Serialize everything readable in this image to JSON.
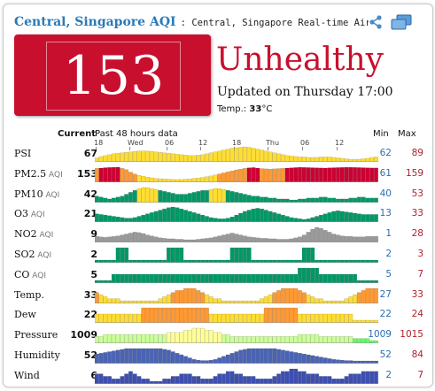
{
  "header": {
    "city": "Central, Singapore AQI",
    "subtitle": ": Central, Singapore Real-time Air Quality"
  },
  "icons": {
    "share": "share-icon",
    "windows": "windows-icon"
  },
  "summary": {
    "aqi": "153",
    "level": "Unhealthy",
    "updated": "Updated on Thursday 17:00",
    "temp_label": "Temp.:",
    "temp_value": "33",
    "temp_unit": "°C"
  },
  "columns": {
    "current": "Current",
    "history": "Past 48 hours data",
    "min": "Min",
    "max": "Max"
  },
  "ticks": [
    "18",
    "Wed",
    "06",
    "12",
    "18",
    "Thu",
    "06",
    "12"
  ],
  "colors": {
    "good": "#009966",
    "moderate": "#ffde33",
    "sensitive": "#ff9933",
    "unhealthy": "#cc0033",
    "gray": "#9a9a9a",
    "temp_low": "#ffde33",
    "temp_high": "#ff9933",
    "pressure_low": "#66ff66",
    "pressure_mid": "#ccff99",
    "pressure_high": "#ffff99",
    "humidity": "#4a64b5",
    "wind": "#3d4fb0"
  },
  "rows": [
    {
      "key": "psi",
      "label": "PSI",
      "aqi": "",
      "current": "67",
      "min": "62",
      "max": "89",
      "scheme": "moderate",
      "values": [
        65,
        68,
        70,
        72,
        74,
        75,
        76,
        77,
        78,
        79,
        80,
        80,
        80,
        79,
        78,
        77,
        76,
        75,
        74,
        73,
        72,
        71,
        70,
        70,
        71,
        72,
        74,
        76,
        78,
        80,
        82,
        84,
        86,
        87,
        88,
        89,
        88,
        86,
        84,
        82,
        80,
        78,
        76,
        74,
        72,
        70,
        69,
        68,
        67,
        67,
        66,
        66,
        66,
        67,
        67,
        67,
        66,
        65,
        64,
        63,
        62,
        62,
        62,
        63,
        64,
        66,
        67
      ]
    },
    {
      "key": "pm25",
      "label": "PM2.5",
      "aqi": "AQI",
      "current": "153",
      "min": "61",
      "max": "159",
      "values": [
        150,
        152,
        155,
        157,
        158,
        159,
        150,
        140,
        120,
        105,
        95,
        88,
        80,
        75,
        70,
        68,
        66,
        64,
        62,
        61,
        62,
        64,
        66,
        70,
        74,
        78,
        84,
        90,
        98,
        106,
        114,
        122,
        130,
        138,
        144,
        150,
        154,
        156,
        152,
        148,
        146,
        144,
        146,
        148,
        150,
        152,
        154,
        156,
        158,
        157,
        156,
        155,
        154,
        153,
        152,
        154,
        155,
        156,
        157,
        158,
        158,
        157,
        156,
        155,
        154,
        153,
        153
      ]
    },
    {
      "key": "pm10",
      "label": "PM10",
      "aqi": "AQI",
      "current": "42",
      "min": "40",
      "max": "53",
      "values": [
        44,
        43,
        42,
        41,
        42,
        43,
        44,
        46,
        48,
        50,
        52,
        53,
        53,
        52,
        51,
        50,
        49,
        48,
        47,
        46,
        46,
        46,
        47,
        48,
        49,
        50,
        50,
        51,
        52,
        52,
        51,
        50,
        49,
        48,
        47,
        46,
        45,
        44,
        44,
        43,
        43,
        42,
        42,
        41,
        41,
        41,
        40,
        40,
        41,
        41,
        42,
        42,
        42,
        43,
        43,
        42,
        42,
        41,
        41,
        41,
        42,
        42,
        43,
        43,
        42,
        42,
        42
      ]
    },
    {
      "key": "o3",
      "label": "O3",
      "aqi": "AQI",
      "current": "21",
      "min": "13",
      "max": "33",
      "scheme": "good",
      "values": [
        22,
        21,
        20,
        19,
        18,
        17,
        16,
        15,
        15,
        16,
        18,
        20,
        22,
        24,
        26,
        28,
        30,
        32,
        33,
        32,
        30,
        28,
        26,
        24,
        22,
        20,
        18,
        16,
        15,
        14,
        14,
        15,
        17,
        20,
        23,
        26,
        28,
        30,
        31,
        30,
        28,
        26,
        24,
        22,
        20,
        18,
        16,
        15,
        14,
        13,
        14,
        16,
        18,
        20,
        22,
        24,
        26,
        27,
        26,
        25,
        24,
        23,
        22,
        21,
        21,
        21,
        21
      ]
    },
    {
      "key": "no2",
      "label": "NO2",
      "aqi": "AQI",
      "current": "9",
      "min": "1",
      "max": "28",
      "scheme": "gray",
      "values": [
        9,
        8,
        7,
        8,
        9,
        10,
        12,
        14,
        16,
        18,
        17,
        15,
        12,
        10,
        8,
        6,
        5,
        4,
        4,
        3,
        3,
        2,
        2,
        2,
        3,
        4,
        5,
        6,
        8,
        10,
        12,
        14,
        16,
        14,
        12,
        10,
        8,
        7,
        6,
        5,
        5,
        4,
        4,
        3,
        3,
        3,
        4,
        6,
        8,
        12,
        18,
        24,
        28,
        26,
        22,
        18,
        14,
        12,
        10,
        9,
        9,
        8,
        8,
        8,
        9,
        9,
        9
      ]
    },
    {
      "key": "so2",
      "label": "SO2",
      "aqi": "AQI",
      "current": "2",
      "min": "2",
      "max": "3",
      "scheme": "good",
      "values": [
        2,
        2,
        2,
        2,
        2,
        3,
        3,
        3,
        2,
        2,
        2,
        2,
        2,
        2,
        2,
        2,
        2,
        3,
        3,
        3,
        3,
        2,
        2,
        2,
        2,
        2,
        2,
        2,
        2,
        2,
        2,
        2,
        3,
        3,
        3,
        3,
        3,
        2,
        2,
        2,
        2,
        2,
        2,
        2,
        2,
        2,
        2,
        2,
        2,
        3,
        3,
        3,
        2,
        2,
        2,
        2,
        2,
        2,
        2,
        2,
        2,
        2,
        2,
        2,
        2,
        2,
        2
      ]
    },
    {
      "key": "co",
      "label": "CO",
      "aqi": "AQI",
      "current": "5",
      "min": "5",
      "max": "7",
      "scheme": "good",
      "values": [
        5,
        5,
        5,
        5,
        6,
        6,
        6,
        6,
        6,
        6,
        6,
        6,
        6,
        6,
        6,
        6,
        6,
        6,
        6,
        6,
        6,
        6,
        6,
        6,
        6,
        6,
        6,
        6,
        6,
        6,
        6,
        6,
        6,
        6,
        6,
        6,
        6,
        6,
        6,
        6,
        6,
        6,
        6,
        6,
        6,
        6,
        6,
        6,
        7,
        7,
        7,
        7,
        7,
        6,
        6,
        6,
        6,
        6,
        6,
        6,
        6,
        6,
        5,
        5,
        5,
        5,
        5
      ]
    },
    {
      "key": "temp",
      "label": "Temp.",
      "aqi": "",
      "current": "33",
      "min": "27",
      "max": "33",
      "scheme": "temp",
      "values": [
        31,
        30,
        29,
        28,
        28,
        28,
        27,
        27,
        27,
        27,
        27,
        27,
        27,
        27,
        27,
        28,
        29,
        30,
        31,
        32,
        32,
        33,
        33,
        33,
        32,
        31,
        30,
        29,
        28,
        28,
        27,
        27,
        27,
        27,
        27,
        27,
        27,
        27,
        27,
        28,
        29,
        30,
        31,
        32,
        33,
        33,
        33,
        33,
        32,
        31,
        30,
        29,
        28,
        28,
        27,
        27,
        27,
        27,
        27,
        28,
        29,
        30,
        31,
        32,
        33,
        33,
        33
      ]
    },
    {
      "key": "dew",
      "label": "Dew",
      "aqi": "",
      "current": "22",
      "min": "22",
      "max": "24",
      "scheme": "temp",
      "values": [
        23,
        23,
        23,
        23,
        23,
        23,
        23,
        23,
        23,
        23,
        23,
        24,
        24,
        24,
        24,
        24,
        24,
        24,
        24,
        24,
        24,
        24,
        24,
        24,
        24,
        24,
        24,
        23,
        23,
        23,
        23,
        23,
        23,
        23,
        23,
        23,
        23,
        23,
        23,
        23,
        24,
        24,
        24,
        24,
        24,
        24,
        24,
        24,
        23,
        23,
        23,
        23,
        23,
        23,
        23,
        23,
        23,
        23,
        23,
        23,
        23,
        22,
        22,
        22,
        22,
        22,
        22
      ]
    },
    {
      "key": "pressure",
      "label": "Pressure",
      "aqi": "",
      "current": "1009",
      "min": "1009",
      "max": "1015",
      "scheme": "pressure",
      "values": [
        1011,
        1011,
        1012,
        1012,
        1012,
        1012,
        1012,
        1012,
        1012,
        1012,
        1012,
        1012,
        1012,
        1012,
        1012,
        1012,
        1012,
        1013,
        1013,
        1013,
        1013,
        1014,
        1014,
        1015,
        1015,
        1015,
        1014,
        1014,
        1013,
        1013,
        1012,
        1012,
        1011,
        1011,
        1011,
        1011,
        1011,
        1011,
        1011,
        1011,
        1011,
        1011,
        1011,
        1011,
        1011,
        1011,
        1011,
        1011,
        1012,
        1012,
        1012,
        1012,
        1012,
        1011,
        1011,
        1011,
        1011,
        1011,
        1011,
        1011,
        1011,
        1010,
        1010,
        1010,
        1010,
        1009,
        1009
      ]
    },
    {
      "key": "humidity",
      "label": "Humidity",
      "aqi": "",
      "current": "52",
      "min": "52",
      "max": "84",
      "scheme": "humidity",
      "values": [
        70,
        72,
        74,
        76,
        78,
        80,
        82,
        84,
        84,
        84,
        84,
        84,
        84,
        84,
        84,
        84,
        82,
        80,
        76,
        72,
        68,
        64,
        60,
        56,
        54,
        53,
        53,
        54,
        56,
        60,
        64,
        68,
        72,
        76,
        80,
        82,
        84,
        84,
        84,
        84,
        84,
        84,
        84,
        82,
        80,
        78,
        76,
        74,
        72,
        70,
        68,
        66,
        64,
        62,
        60,
        58,
        56,
        55,
        54,
        53,
        53,
        52,
        52,
        52,
        52,
        52,
        52
      ]
    },
    {
      "key": "wind",
      "label": "Wind",
      "aqi": "",
      "current": "6",
      "min": "2",
      "max": "7",
      "scheme": "wind",
      "values": [
        5,
        5,
        4,
        4,
        3,
        3,
        4,
        5,
        6,
        5,
        4,
        3,
        3,
        2,
        2,
        2,
        3,
        3,
        4,
        4,
        5,
        5,
        5,
        4,
        4,
        3,
        3,
        3,
        4,
        5,
        5,
        6,
        6,
        5,
        5,
        4,
        4,
        4,
        3,
        3,
        3,
        3,
        4,
        5,
        6,
        6,
        7,
        7,
        6,
        6,
        5,
        5,
        5,
        4,
        4,
        4,
        3,
        3,
        3,
        4,
        5,
        5,
        5,
        6,
        6,
        6,
        6
      ]
    }
  ]
}
